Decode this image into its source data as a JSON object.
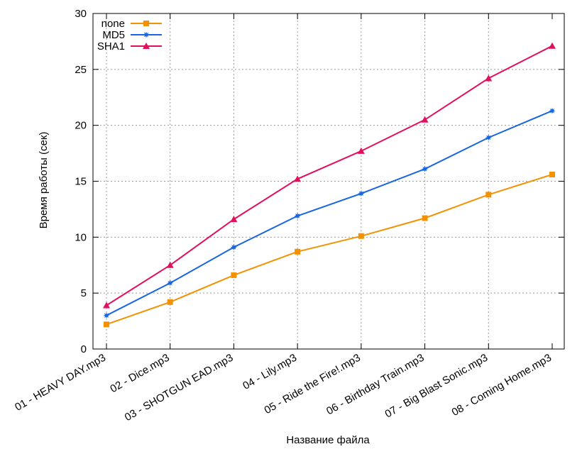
{
  "chart_data": {
    "type": "line",
    "categories": [
      "01 - HEAVY DAY.mp3",
      "02 - Dice.mp3",
      "03 - SHOTGUN  EAD.mp3",
      "04 - Lily.mp3",
      "05 - Ride the Fire!.mp3",
      "06 - Birthday Train.mp3",
      "07 - Big Blast Sonic.mp3",
      "08 - Coming Home.mp3"
    ],
    "series": [
      {
        "name": "none",
        "color": "#f39200",
        "marker": "square",
        "values": [
          2.2,
          4.2,
          6.6,
          8.7,
          10.1,
          11.7,
          13.8,
          15.6
        ]
      },
      {
        "name": "MD5",
        "color": "#1a66e0",
        "marker": "star",
        "values": [
          3.0,
          5.9,
          9.1,
          11.9,
          13.9,
          16.1,
          18.9,
          21.3
        ]
      },
      {
        "name": "SHA1",
        "color": "#e0105e",
        "marker": "triangle",
        "values": [
          3.9,
          7.5,
          11.6,
          15.2,
          17.7,
          20.5,
          24.2,
          27.1
        ]
      }
    ],
    "xlabel": "Название файла",
    "ylabel": "Время работы (сек)",
    "ylim": [
      0,
      30
    ],
    "yticks": [
      0,
      5,
      10,
      15,
      20,
      25,
      30
    ],
    "grid": true,
    "legend": "top-left"
  }
}
